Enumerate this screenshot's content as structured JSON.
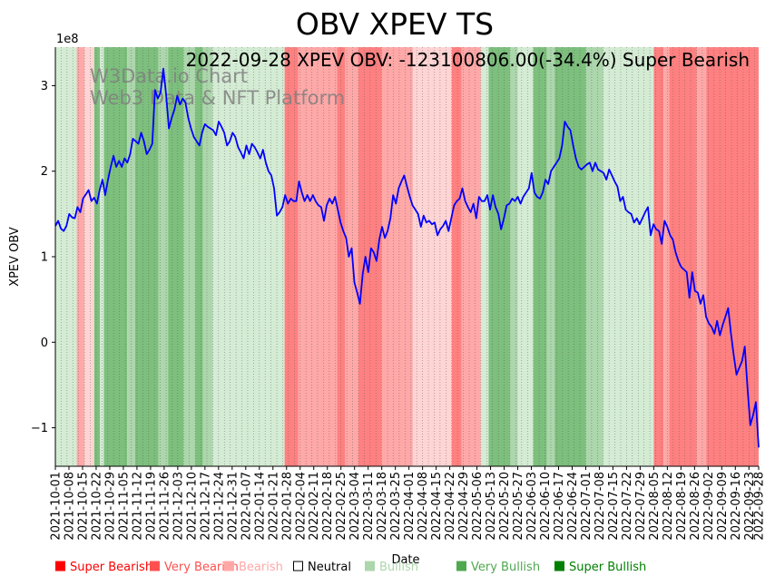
{
  "chart_data": {
    "type": "line",
    "title": "OBV XPEV TS",
    "annotation": "2022-09-28 XPEV OBV: -123100806.00(-34.4%) Super Bearish",
    "watermark": [
      "W3Data.io Chart",
      "Web3 Data & NFT Platform"
    ],
    "xlabel": "Date",
    "ylabel": "XPEV OBV",
    "y_scale_label": "1e8",
    "ylim": [
      -1.45,
      3.45
    ],
    "yticks": [
      -1,
      0,
      1,
      2,
      3
    ],
    "ytick_labels": [
      "−1",
      "0",
      "1",
      "2",
      "3"
    ],
    "x_start": "2021-10-01",
    "x_end": "2022-09-28",
    "xtick_labels": [
      "2021-10-01",
      "2021-10-08",
      "2021-10-15",
      "2021-10-22",
      "2021-10-29",
      "2021-11-05",
      "2021-11-12",
      "2021-11-19",
      "2021-11-26",
      "2021-12-03",
      "2021-12-10",
      "2021-12-17",
      "2021-12-24",
      "2021-12-31",
      "2022-01-07",
      "2022-01-14",
      "2022-01-21",
      "2022-01-28",
      "2022-02-04",
      "2022-02-11",
      "2022-02-18",
      "2022-02-25",
      "2022-03-04",
      "2022-03-11",
      "2022-03-18",
      "2022-03-25",
      "2022-04-01",
      "2022-04-08",
      "2022-04-15",
      "2022-04-22",
      "2022-04-29",
      "2022-05-06",
      "2022-05-13",
      "2022-05-20",
      "2022-05-27",
      "2022-06-03",
      "2022-06-10",
      "2022-06-17",
      "2022-06-24",
      "2022-07-01",
      "2022-07-08",
      "2022-07-15",
      "2022-07-22",
      "2022-07-29",
      "2022-08-05",
      "2022-08-12",
      "2022-08-19",
      "2022-08-26",
      "2022-09-02",
      "2022-09-09",
      "2022-09-16",
      "2022-09-23",
      "2022-09-28"
    ],
    "series": [
      {
        "name": "XPEV OBV",
        "color": "#0000ff",
        "values": [
          1.36,
          1.42,
          1.33,
          1.3,
          1.36,
          1.5,
          1.46,
          1.45,
          1.58,
          1.52,
          1.68,
          1.73,
          1.78,
          1.65,
          1.69,
          1.62,
          1.78,
          1.9,
          1.72,
          1.9,
          2.05,
          2.18,
          2.05,
          2.12,
          2.05,
          2.15,
          2.1,
          2.2,
          2.38,
          2.35,
          2.32,
          2.45,
          2.35,
          2.2,
          2.25,
          2.32,
          2.95,
          2.85,
          2.92,
          3.2,
          2.9,
          2.5,
          2.62,
          2.72,
          2.88,
          2.78,
          2.85,
          2.8,
          2.62,
          2.5,
          2.4,
          2.35,
          2.3,
          2.45,
          2.55,
          2.52,
          2.5,
          2.48,
          2.42,
          2.58,
          2.52,
          2.45,
          2.3,
          2.35,
          2.45,
          2.4,
          2.28,
          2.22,
          2.15,
          2.3,
          2.2,
          2.32,
          2.28,
          2.22,
          2.15,
          2.25,
          2.1,
          2.0,
          1.95,
          1.8,
          1.48,
          1.52,
          1.58,
          1.72,
          1.62,
          1.68,
          1.65,
          1.65,
          1.88,
          1.75,
          1.65,
          1.72,
          1.65,
          1.72,
          1.65,
          1.6,
          1.58,
          1.42,
          1.6,
          1.68,
          1.62,
          1.7,
          1.55,
          1.4,
          1.3,
          1.22,
          1.0,
          1.1,
          0.7,
          0.58,
          0.45,
          0.8,
          1.0,
          0.82,
          1.1,
          1.05,
          0.95,
          1.2,
          1.35,
          1.22,
          1.3,
          1.45,
          1.72,
          1.62,
          1.8,
          1.88,
          1.95,
          1.82,
          1.7,
          1.6,
          1.55,
          1.5,
          1.35,
          1.48,
          1.4,
          1.42,
          1.38,
          1.4,
          1.25,
          1.32,
          1.36,
          1.42,
          1.3,
          1.45,
          1.6,
          1.65,
          1.68,
          1.8,
          1.65,
          1.58,
          1.52,
          1.62,
          1.45,
          1.7,
          1.65,
          1.65,
          1.72,
          1.55,
          1.72,
          1.58,
          1.5,
          1.32,
          1.45,
          1.6,
          1.62,
          1.68,
          1.65,
          1.7,
          1.62,
          1.7,
          1.75,
          1.8,
          1.98,
          1.75,
          1.7,
          1.68,
          1.75,
          1.9,
          1.85,
          2.0,
          2.05,
          2.1,
          2.15,
          2.3,
          2.58,
          2.52,
          2.48,
          2.3,
          2.15,
          2.05,
          2.02,
          2.05,
          2.08,
          2.1,
          2.0,
          2.1,
          2.02,
          2.0,
          1.98,
          1.9,
          2.02,
          1.95,
          1.88,
          1.82,
          1.65,
          1.7,
          1.55,
          1.52,
          1.5,
          1.4,
          1.45,
          1.38,
          1.45,
          1.52,
          1.58,
          1.25,
          1.38,
          1.32,
          1.3,
          1.15,
          1.42,
          1.35,
          1.25,
          1.2,
          1.05,
          0.95,
          0.88,
          0.85,
          0.82,
          0.52,
          0.82,
          0.6,
          0.58,
          0.45,
          0.55,
          0.3,
          0.22,
          0.18,
          0.1,
          0.25,
          0.08,
          0.2,
          0.3,
          0.4,
          0.1,
          -0.15,
          -0.38,
          -0.3,
          -0.22,
          -0.05,
          -0.55,
          -0.97,
          -0.85,
          -0.7,
          -1.23
        ]
      }
    ],
    "regime_bands": [
      {
        "label": "Bullish",
        "color": "#d4ebd4",
        "from": "2021-10-01",
        "to": "2021-10-12"
      },
      {
        "label": "Bearish",
        "color": "#ffa8a8",
        "from": "2021-10-12",
        "to": "2021-10-16"
      },
      {
        "label": "Neutral-Bearish",
        "color": "#ffd4d4",
        "from": "2021-10-16",
        "to": "2021-10-21"
      },
      {
        "label": "Very Bullish",
        "color": "#7dbf7d",
        "from": "2021-10-21",
        "to": "2021-10-24"
      },
      {
        "label": "Bullish",
        "color": "#d4ebd4",
        "from": "2021-10-24",
        "to": "2021-10-26"
      },
      {
        "label": "Very Bullish",
        "color": "#7dbf7d",
        "from": "2021-10-26",
        "to": "2021-11-07"
      },
      {
        "label": "Bullish",
        "color": "#acd6ac",
        "from": "2021-11-07",
        "to": "2021-11-11"
      },
      {
        "label": "Very Bullish",
        "color": "#7dbf7d",
        "from": "2021-11-11",
        "to": "2021-11-23"
      },
      {
        "label": "Bullish",
        "color": "#acd6ac",
        "from": "2021-11-23",
        "to": "2021-11-28"
      },
      {
        "label": "Very Bullish",
        "color": "#7dbf7d",
        "from": "2021-11-28",
        "to": "2021-12-06"
      },
      {
        "label": "Bullish",
        "color": "#acd6ac",
        "from": "2021-12-06",
        "to": "2021-12-12"
      },
      {
        "label": "Very Bullish",
        "color": "#7dbf7d",
        "from": "2021-12-12",
        "to": "2021-12-16"
      },
      {
        "label": "Bullish",
        "color": "#acd6ac",
        "from": "2021-12-16",
        "to": "2021-12-21"
      },
      {
        "label": "Bullish",
        "color": "#d4ebd4",
        "from": "2021-12-21",
        "to": "2022-01-27"
      },
      {
        "label": "Very Bearish",
        "color": "#ff8080",
        "from": "2022-01-27",
        "to": "2022-02-03"
      },
      {
        "label": "Bearish",
        "color": "#ffa8a8",
        "from": "2022-02-03",
        "to": "2022-02-23"
      },
      {
        "label": "Very Bearish",
        "color": "#ff8080",
        "from": "2022-02-23",
        "to": "2022-02-27"
      },
      {
        "label": "Bearish",
        "color": "#ffa8a8",
        "from": "2022-02-27",
        "to": "2022-03-06"
      },
      {
        "label": "Very Bearish",
        "color": "#ff8080",
        "from": "2022-03-06",
        "to": "2022-03-18"
      },
      {
        "label": "Bearish",
        "color": "#ffa8a8",
        "from": "2022-03-18",
        "to": "2022-04-03"
      },
      {
        "label": "Neutral-Bearish",
        "color": "#ffd4d4",
        "from": "2022-04-03",
        "to": "2022-04-23"
      },
      {
        "label": "Very Bearish",
        "color": "#ff8080",
        "from": "2022-04-23",
        "to": "2022-04-28"
      },
      {
        "label": "Bearish",
        "color": "#ffa8a8",
        "from": "2022-04-28",
        "to": "2022-05-08"
      },
      {
        "label": "Bullish",
        "color": "#d4ebd4",
        "from": "2022-05-08",
        "to": "2022-05-12"
      },
      {
        "label": "Very Bullish",
        "color": "#7dbf7d",
        "from": "2022-05-12",
        "to": "2022-05-23"
      },
      {
        "label": "Bullish",
        "color": "#acd6ac",
        "from": "2022-05-23",
        "to": "2022-05-27"
      },
      {
        "label": "Bullish",
        "color": "#d4ebd4",
        "from": "2022-05-27",
        "to": "2022-06-04"
      },
      {
        "label": "Very Bullish",
        "color": "#7dbf7d",
        "from": "2022-06-04",
        "to": "2022-06-11"
      },
      {
        "label": "Bullish",
        "color": "#acd6ac",
        "from": "2022-06-11",
        "to": "2022-06-15"
      },
      {
        "label": "Very Bullish",
        "color": "#7dbf7d",
        "from": "2022-06-15",
        "to": "2022-07-01"
      },
      {
        "label": "Bullish",
        "color": "#acd6ac",
        "from": "2022-07-01",
        "to": "2022-07-10"
      },
      {
        "label": "Bullish",
        "color": "#d4ebd4",
        "from": "2022-07-10",
        "to": "2022-08-05"
      },
      {
        "label": "Very Bearish",
        "color": "#ff8080",
        "from": "2022-08-05",
        "to": "2022-08-10"
      },
      {
        "label": "Bearish",
        "color": "#ffa8a8",
        "from": "2022-08-10",
        "to": "2022-08-13"
      },
      {
        "label": "Very Bearish",
        "color": "#ff8080",
        "from": "2022-08-13",
        "to": "2022-08-27"
      },
      {
        "label": "Bearish",
        "color": "#ffa8a8",
        "from": "2022-08-27",
        "to": "2022-09-01"
      },
      {
        "label": "Very Bearish",
        "color": "#ff8080",
        "from": "2022-09-01",
        "to": "2022-09-28"
      }
    ],
    "legend": [
      {
        "label": "Super Bearish",
        "color": "#ff0000"
      },
      {
        "label": "Very Bearish",
        "color": "#ff5050"
      },
      {
        "label": "Bearish",
        "color": "#ffa8a8"
      },
      {
        "label": "Neutral",
        "color": "#000000",
        "hollow": true
      },
      {
        "label": "Bullish",
        "color": "#acd6ac"
      },
      {
        "label": "Very Bullish",
        "color": "#50a850"
      },
      {
        "label": "Super Bullish",
        "color": "#008000"
      }
    ],
    "legend_position": "bottom",
    "grid": "vertical dotted"
  }
}
